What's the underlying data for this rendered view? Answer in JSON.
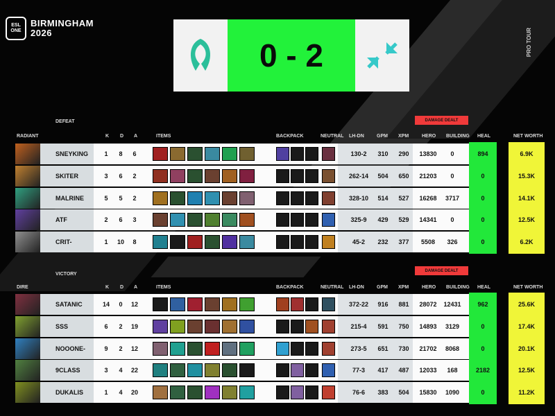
{
  "event": {
    "brand": "ESL ONE",
    "title": "BIRMINGHAM",
    "year": "2026",
    "side_text": "PRO TOUR"
  },
  "score": {
    "text": "0 - 2",
    "left_team_icon": "falcon-logo",
    "right_team_icon": "arrows-logo",
    "accent": "#22f23a"
  },
  "headers": {
    "k": "K",
    "d": "D",
    "a": "A",
    "items": "ITEMS",
    "backpack": "BACKPACK",
    "neutral": "NEUTRAL",
    "lhdn": "LH-DN",
    "gpm": "GPM",
    "xpm": "XPM",
    "hero": "HERO",
    "building": "BUILDING",
    "heal": "HEAL",
    "networth": "NET WORTH",
    "damage": "DAMAGE DEALT"
  },
  "teams": [
    {
      "side": "RADIANT",
      "result": "DEFEAT",
      "players": [
        {
          "name": "SNEYKING",
          "k": "1",
          "d": "8",
          "a": "6",
          "lhdn": "130-2",
          "gpm": "310",
          "xpm": "290",
          "hero": "13830",
          "building": "0",
          "heal": "894",
          "nw": "6.9K",
          "portrait": "#c0601e",
          "items": [
            "#a02020",
            "#8a6a30",
            "#2a5030",
            "#3a8aa0",
            "#20a050",
            "#706030"
          ],
          "backpack": [
            "#5040a0",
            "#1a1a1a",
            "#1a1a1a"
          ],
          "neutral": "#6a3040"
        },
        {
          "name": "SKITER",
          "k": "3",
          "d": "6",
          "a": "2",
          "lhdn": "262-14",
          "gpm": "504",
          "xpm": "650",
          "hero": "21203",
          "building": "0",
          "heal": "0",
          "nw": "15.3K",
          "portrait": "#c08030",
          "items": [
            "#903020",
            "#904060",
            "#2a5030",
            "#6a4030",
            "#a06020",
            "#802040"
          ],
          "backpack": [
            "#1a1a1a",
            "#1a1a1a",
            "#1a1a1a"
          ],
          "neutral": "#7a5030"
        },
        {
          "name": "MALRINE",
          "k": "5",
          "d": "5",
          "a": "2",
          "lhdn": "328-10",
          "gpm": "514",
          "xpm": "527",
          "hero": "16268",
          "building": "3717",
          "heal": "0",
          "nw": "14.1K",
          "portrait": "#30a080",
          "items": [
            "#a07020",
            "#2a5030",
            "#2080b0",
            "#3090b0",
            "#6a4030",
            "#806070"
          ],
          "backpack": [
            "#1a1a1a",
            "#1a1a1a",
            "#1a1a1a"
          ],
          "neutral": "#804030"
        },
        {
          "name": "ATF",
          "k": "2",
          "d": "6",
          "a": "3",
          "lhdn": "325-9",
          "gpm": "429",
          "xpm": "529",
          "hero": "14341",
          "building": "0",
          "heal": "0",
          "nw": "12.5K",
          "portrait": "#6040a0",
          "items": [
            "#6a4030",
            "#3090b0",
            "#2a5030",
            "#508030",
            "#3a8a60",
            "#a05020"
          ],
          "backpack": [
            "#1a1a1a",
            "#1a1a1a",
            "#1a1a1a"
          ],
          "neutral": "#3060b0"
        },
        {
          "name": "CRIT-",
          "k": "1",
          "d": "10",
          "a": "8",
          "lhdn": "45-2",
          "gpm": "232",
          "xpm": "377",
          "hero": "5508",
          "building": "326",
          "heal": "0",
          "nw": "6.2K",
          "portrait": "#909090",
          "items": [
            "#208090",
            "#1a1a1a",
            "#a02020",
            "#2a5030",
            "#5030a0",
            "#3a8aa0"
          ],
          "backpack": [
            "#1a1a1a",
            "#1a1a1a",
            "#1a1a1a"
          ],
          "neutral": "#c08020"
        }
      ]
    },
    {
      "side": "DIRE",
      "result": "VICTORY",
      "players": [
        {
          "name": "SATANIC",
          "k": "14",
          "d": "0",
          "a": "12",
          "lhdn": "372-22",
          "gpm": "916",
          "xpm": "881",
          "hero": "28072",
          "building": "12431",
          "heal": "962",
          "nw": "25.6K",
          "portrait": "#803040",
          "items": [
            "#1a1a1a",
            "#3060a0",
            "#a02030",
            "#6a4030",
            "#a07020",
            "#40a030"
          ],
          "backpack": [
            "#a04020",
            "#a03030",
            "#1a1a1a"
          ],
          "neutral": "#305060"
        },
        {
          "name": "SSS",
          "k": "6",
          "d": "2",
          "a": "19",
          "lhdn": "215-4",
          "gpm": "591",
          "xpm": "750",
          "hero": "14893",
          "building": "3129",
          "heal": "0",
          "nw": "17.4K",
          "portrait": "#80a030",
          "items": [
            "#6040a0",
            "#80a020",
            "#6a4030",
            "#6a3030",
            "#a07030",
            "#3050a0"
          ],
          "backpack": [
            "#1a1a1a",
            "#1a1a1a",
            "#a05020"
          ],
          "neutral": "#a04030"
        },
        {
          "name": "NOOONE-",
          "k": "9",
          "d": "2",
          "a": "12",
          "lhdn": "273-5",
          "gpm": "651",
          "xpm": "730",
          "hero": "21702",
          "building": "8068",
          "heal": "0",
          "nw": "20.1K",
          "portrait": "#3080c0",
          "items": [
            "#806070",
            "#20a090",
            "#2a5030",
            "#c02020",
            "#607080",
            "#20a060"
          ],
          "backpack": [
            "#30a0d0",
            "#1a1a1a",
            "#1a1a1a"
          ],
          "neutral": "#a04030"
        },
        {
          "name": "9CLASS",
          "k": "3",
          "d": "4",
          "a": "22",
          "lhdn": "77-3",
          "gpm": "417",
          "xpm": "487",
          "hero": "12033",
          "building": "168",
          "heal": "2182",
          "nw": "12.5K",
          "portrait": "#508040",
          "items": [
            "#208080",
            "#306040",
            "#2090a0",
            "#808030",
            "#2a5030",
            "#1a1a1a"
          ],
          "backpack": [
            "#1a1a1a",
            "#8060a0",
            "#1a1a1a"
          ],
          "neutral": "#3060b0"
        },
        {
          "name": "DUKALIS",
          "k": "1",
          "d": "4",
          "a": "20",
          "lhdn": "76-6",
          "gpm": "383",
          "xpm": "504",
          "hero": "15830",
          "building": "1090",
          "heal": "0",
          "nw": "11.2K",
          "portrait": "#809020",
          "items": [
            "#a07040",
            "#306040",
            "#2a5030",
            "#a030c0",
            "#808030",
            "#20a0a0"
          ],
          "backpack": [
            "#1a1a1a",
            "#8060a0",
            "#1a1a1a"
          ],
          "neutral": "#c04030"
        }
      ]
    }
  ]
}
